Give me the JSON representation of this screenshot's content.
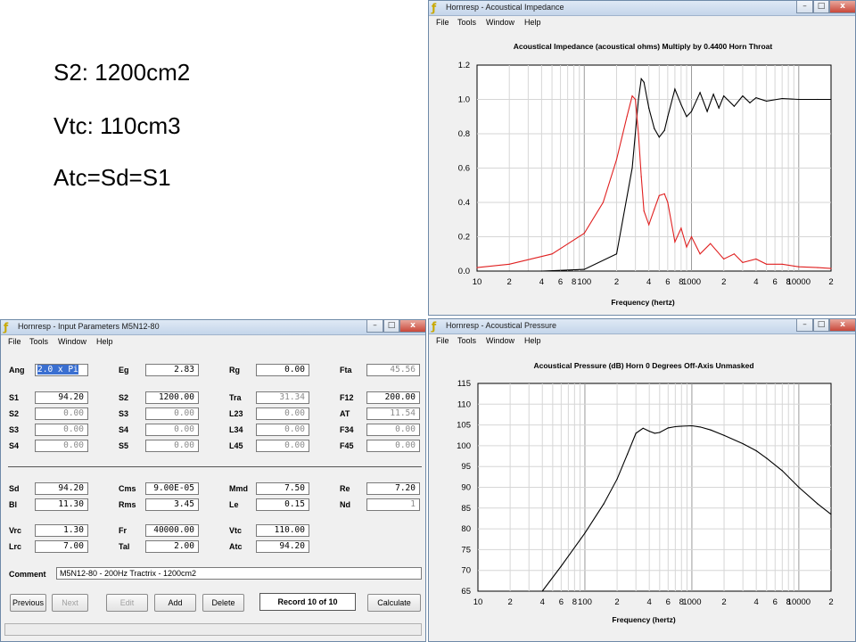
{
  "slide_notes": [
    "S2: 1200cm2",
    "Vtc: 110cm3",
    "Atc=Sd=S1"
  ],
  "impedance_window": {
    "title": "Hornresp - Acoustical Impedance",
    "menu": [
      "File",
      "Tools",
      "Window",
      "Help"
    ],
    "chart_title": "Acoustical Impedance (acoustical ohms)   Multiply by 0.4400   Horn Throat",
    "xlabel": "Frequency (hertz)"
  },
  "pressure_window": {
    "title": "Hornresp - Acoustical Pressure",
    "menu": [
      "File",
      "Tools",
      "Window",
      "Help"
    ],
    "chart_title": "Acoustical Pressure (dB)   Horn   0 Degrees Off-Axis   Unmasked",
    "xlabel": "Frequency (hertz)"
  },
  "window_controls": {
    "minimize": "–",
    "maximize": "□",
    "close": "x"
  },
  "freq_tick_labels": [
    "10",
    "2",
    "4",
    "6",
    "8",
    "100",
    "2",
    "4",
    "6",
    "8",
    "1000",
    "2",
    "4",
    "6",
    "8",
    "10000",
    "2"
  ],
  "chart_data": [
    {
      "type": "line",
      "title": "Acoustical Impedance (acoustical ohms)   Multiply by 0.4400   Horn Throat",
      "xlabel": "Frequency (hertz)",
      "ylabel": "",
      "x_scale": "log",
      "xlim": [
        10,
        20000
      ],
      "ylim": [
        0,
        1.2
      ],
      "yticks": [
        "0.0",
        "0.2",
        "0.4",
        "0.6",
        "0.8",
        "1.0",
        "1.2"
      ],
      "grid": true,
      "series": [
        {
          "color": "#000000",
          "x": [
            10,
            40,
            100,
            200,
            280,
            320,
            340,
            360,
            400,
            450,
            500,
            560,
            600,
            700,
            800,
            900,
            1000,
            1200,
            1400,
            1600,
            1800,
            2000,
            2500,
            3000,
            3500,
            4000,
            5000,
            7000,
            10000,
            15000,
            20000
          ],
          "y": [
            0.0,
            0.0,
            0.01,
            0.1,
            0.6,
            1.0,
            1.12,
            1.1,
            0.95,
            0.83,
            0.78,
            0.82,
            0.9,
            1.06,
            0.97,
            0.9,
            0.93,
            1.04,
            0.93,
            1.03,
            0.95,
            1.02,
            0.96,
            1.02,
            0.98,
            1.01,
            0.99,
            1.005,
            1.0,
            1.0,
            1.0
          ]
        },
        {
          "color": "#e02020",
          "x": [
            10,
            20,
            50,
            100,
            150,
            200,
            250,
            280,
            300,
            320,
            340,
            360,
            400,
            450,
            500,
            560,
            600,
            700,
            800,
            900,
            1000,
            1200,
            1500,
            2000,
            2500,
            3000,
            4000,
            5000,
            7000,
            10000,
            15000,
            20000
          ],
          "y": [
            0.02,
            0.04,
            0.1,
            0.22,
            0.4,
            0.65,
            0.9,
            1.02,
            1.0,
            0.8,
            0.55,
            0.35,
            0.27,
            0.36,
            0.44,
            0.45,
            0.4,
            0.17,
            0.25,
            0.14,
            0.2,
            0.1,
            0.16,
            0.07,
            0.1,
            0.05,
            0.07,
            0.04,
            0.04,
            0.025,
            0.02,
            0.015
          ]
        }
      ]
    },
    {
      "type": "line",
      "title": "Acoustical Pressure (dB)   Horn   0 Degrees Off-Axis   Unmasked",
      "xlabel": "Frequency (hertz)",
      "ylabel": "",
      "x_scale": "log",
      "xlim": [
        10,
        20000
      ],
      "ylim": [
        65,
        115
      ],
      "yticks": [
        "65",
        "70",
        "75",
        "80",
        "85",
        "90",
        "95",
        "100",
        "105",
        "110",
        "115"
      ],
      "grid": true,
      "series": [
        {
          "color": "#000000",
          "x": [
            40,
            60,
            100,
            150,
            200,
            250,
            300,
            350,
            400,
            450,
            500,
            600,
            700,
            800,
            1000,
            1200,
            1500,
            2000,
            3000,
            4000,
            5000,
            7000,
            10000,
            15000,
            20000
          ],
          "y": [
            65,
            71,
            79,
            86,
            92,
            98,
            103,
            104.2,
            103.5,
            103.0,
            103.2,
            104.3,
            104.6,
            104.7,
            104.8,
            104.5,
            103.8,
            102.5,
            100.5,
            98.8,
            97,
            94,
            90,
            86,
            83.5
          ]
        }
      ]
    }
  ],
  "params_window": {
    "title": "Hornresp - Input Parameters   M5N12-80",
    "menu": [
      "File",
      "Tools",
      "Window",
      "Help"
    ],
    "rows1": [
      [
        {
          "l": "Ang",
          "v": "2.0 x Pi",
          "sel": true
        },
        {
          "l": "Eg",
          "v": "2.83"
        },
        {
          "l": "Rg",
          "v": "0.00"
        },
        {
          "l": "Fta",
          "v": "45.56",
          "gray": true
        }
      ],
      [
        {
          "l": "S1",
          "v": "94.20"
        },
        {
          "l": "S2",
          "v": "1200.00"
        },
        {
          "l": "Tra",
          "v": "31.34",
          "gray": true
        },
        {
          "l": "F12",
          "v": "200.00"
        }
      ],
      [
        {
          "l": "S2",
          "v": "0.00",
          "gray": true
        },
        {
          "l": "S3",
          "v": "0.00",
          "gray": true
        },
        {
          "l": "L23",
          "v": "0.00",
          "gray": true
        },
        {
          "l": "AT",
          "v": "11.54",
          "gray": true
        }
      ],
      [
        {
          "l": "S3",
          "v": "0.00",
          "gray": true
        },
        {
          "l": "S4",
          "v": "0.00",
          "gray": true
        },
        {
          "l": "L34",
          "v": "0.00",
          "gray": true
        },
        {
          "l": "F34",
          "v": "0.00",
          "gray": true
        }
      ],
      [
        {
          "l": "S4",
          "v": "0.00",
          "gray": true
        },
        {
          "l": "S5",
          "v": "0.00",
          "gray": true
        },
        {
          "l": "L45",
          "v": "0.00",
          "gray": true
        },
        {
          "l": "F45",
          "v": "0.00",
          "gray": true
        }
      ]
    ],
    "rows2": [
      [
        {
          "l": "Sd",
          "v": "94.20"
        },
        {
          "l": "Cms",
          "v": "9.00E-05"
        },
        {
          "l": "Mmd",
          "v": "7.50"
        },
        {
          "l": "Re",
          "v": "7.20"
        }
      ],
      [
        {
          "l": "Bl",
          "v": "11.30"
        },
        {
          "l": "Rms",
          "v": "3.45"
        },
        {
          "l": "Le",
          "v": "0.15"
        },
        {
          "l": "Nd",
          "v": "1",
          "gray": true
        }
      ]
    ],
    "rows3": [
      [
        {
          "l": "Vrc",
          "v": "1.30"
        },
        {
          "l": "Fr",
          "v": "40000.00"
        },
        {
          "l": "Vtc",
          "v": "110.00"
        }
      ],
      [
        {
          "l": "Lrc",
          "v": "7.00"
        },
        {
          "l": "Tal",
          "v": "2.00"
        },
        {
          "l": "Atc",
          "v": "94.20"
        }
      ]
    ],
    "comment_label": "Comment",
    "comment_value": "M5N12-80 - 200Hz Tractrix - 1200cm2",
    "buttons": {
      "previous": "Previous",
      "next": "Next",
      "edit": "Edit",
      "add": "Add",
      "delete": "Delete",
      "record": "Record 10 of 10",
      "calculate": "Calculate"
    }
  }
}
